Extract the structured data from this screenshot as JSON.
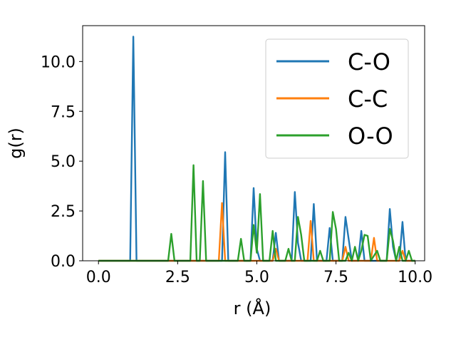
{
  "chart_data": {
    "type": "line",
    "xlabel": "r (Å)",
    "ylabel": "g(r)",
    "xlim": [
      -0.5,
      10.3
    ],
    "ylim": [
      0,
      11.8
    ],
    "x_ticks": [
      "0.0",
      "2.5",
      "5.0",
      "7.5",
      "10.0"
    ],
    "y_ticks": [
      "0.0",
      "2.5",
      "5.0",
      "7.5",
      "10.0"
    ],
    "legend_position": "top-right",
    "grid": false,
    "series": [
      {
        "name": "C-O",
        "color": "#1f77b4",
        "points": [
          [
            0.0,
            0
          ],
          [
            1.0,
            0
          ],
          [
            1.1,
            11.25
          ],
          [
            1.2,
            0
          ],
          [
            3.9,
            0
          ],
          [
            4.0,
            5.45
          ],
          [
            4.1,
            0
          ],
          [
            4.8,
            0
          ],
          [
            4.9,
            3.65
          ],
          [
            5.0,
            0.6
          ],
          [
            5.1,
            0
          ],
          [
            5.5,
            0
          ],
          [
            5.6,
            1.4
          ],
          [
            5.7,
            0
          ],
          [
            6.1,
            0
          ],
          [
            6.2,
            3.45
          ],
          [
            6.3,
            0.9
          ],
          [
            6.4,
            0
          ],
          [
            6.7,
            0
          ],
          [
            6.8,
            2.85
          ],
          [
            6.9,
            0
          ],
          [
            7.2,
            0
          ],
          [
            7.3,
            1.65
          ],
          [
            7.4,
            0
          ],
          [
            7.7,
            0
          ],
          [
            7.8,
            2.2
          ],
          [
            7.9,
            1.1
          ],
          [
            8.0,
            0
          ],
          [
            8.2,
            0
          ],
          [
            8.3,
            1.5
          ],
          [
            8.4,
            0
          ],
          [
            9.1,
            0
          ],
          [
            9.2,
            2.6
          ],
          [
            9.3,
            0.7
          ],
          [
            9.4,
            0
          ],
          [
            9.5,
            0
          ],
          [
            9.6,
            1.95
          ],
          [
            9.7,
            0
          ],
          [
            10.0,
            0
          ]
        ]
      },
      {
        "name": "C-C",
        "color": "#ff7f0e",
        "points": [
          [
            0.0,
            0
          ],
          [
            3.7,
            0
          ],
          [
            3.8,
            0
          ],
          [
            3.9,
            2.9
          ],
          [
            4.0,
            0
          ],
          [
            5.5,
            0
          ],
          [
            5.6,
            0.6
          ],
          [
            5.7,
            0
          ],
          [
            6.6,
            0
          ],
          [
            6.7,
            2.0
          ],
          [
            6.8,
            0
          ],
          [
            7.7,
            0
          ],
          [
            7.8,
            0.7
          ],
          [
            7.9,
            0
          ],
          [
            8.6,
            0
          ],
          [
            8.7,
            1.15
          ],
          [
            8.8,
            0
          ],
          [
            9.5,
            0
          ],
          [
            9.6,
            0.5
          ],
          [
            9.7,
            0
          ],
          [
            10.0,
            0
          ]
        ]
      },
      {
        "name": "O-O",
        "color": "#2ca02c",
        "points": [
          [
            0.0,
            0
          ],
          [
            2.2,
            0
          ],
          [
            2.3,
            1.35
          ],
          [
            2.4,
            0
          ],
          [
            2.9,
            0
          ],
          [
            3.0,
            4.8
          ],
          [
            3.1,
            0
          ],
          [
            3.2,
            0
          ],
          [
            3.3,
            4.0
          ],
          [
            3.4,
            0
          ],
          [
            4.4,
            0
          ],
          [
            4.5,
            1.1
          ],
          [
            4.6,
            0
          ],
          [
            4.8,
            0
          ],
          [
            4.9,
            1.8
          ],
          [
            5.0,
            0.4
          ],
          [
            5.1,
            3.35
          ],
          [
            5.2,
            0
          ],
          [
            5.4,
            0
          ],
          [
            5.5,
            1.5
          ],
          [
            5.6,
            0
          ],
          [
            5.9,
            0
          ],
          [
            6.0,
            0.6
          ],
          [
            6.1,
            0
          ],
          [
            6.2,
            0
          ],
          [
            6.3,
            2.2
          ],
          [
            6.4,
            1.3
          ],
          [
            6.5,
            0
          ],
          [
            6.9,
            0
          ],
          [
            7.0,
            0.5
          ],
          [
            7.1,
            0
          ],
          [
            7.3,
            0
          ],
          [
            7.4,
            2.45
          ],
          [
            7.5,
            1.6
          ],
          [
            7.6,
            0
          ],
          [
            7.8,
            0
          ],
          [
            7.9,
            0.4
          ],
          [
            8.0,
            0
          ],
          [
            8.1,
            0.7
          ],
          [
            8.2,
            0
          ],
          [
            8.3,
            0.5
          ],
          [
            8.4,
            1.3
          ],
          [
            8.5,
            1.25
          ],
          [
            8.6,
            0
          ],
          [
            8.8,
            0.5
          ],
          [
            8.9,
            0
          ],
          [
            9.1,
            0
          ],
          [
            9.2,
            1.6
          ],
          [
            9.3,
            1.0
          ],
          [
            9.4,
            0
          ],
          [
            9.5,
            0.7
          ],
          [
            9.6,
            0
          ],
          [
            9.7,
            0
          ],
          [
            9.8,
            0.5
          ],
          [
            9.9,
            0
          ],
          [
            10.0,
            0
          ]
        ]
      }
    ]
  }
}
